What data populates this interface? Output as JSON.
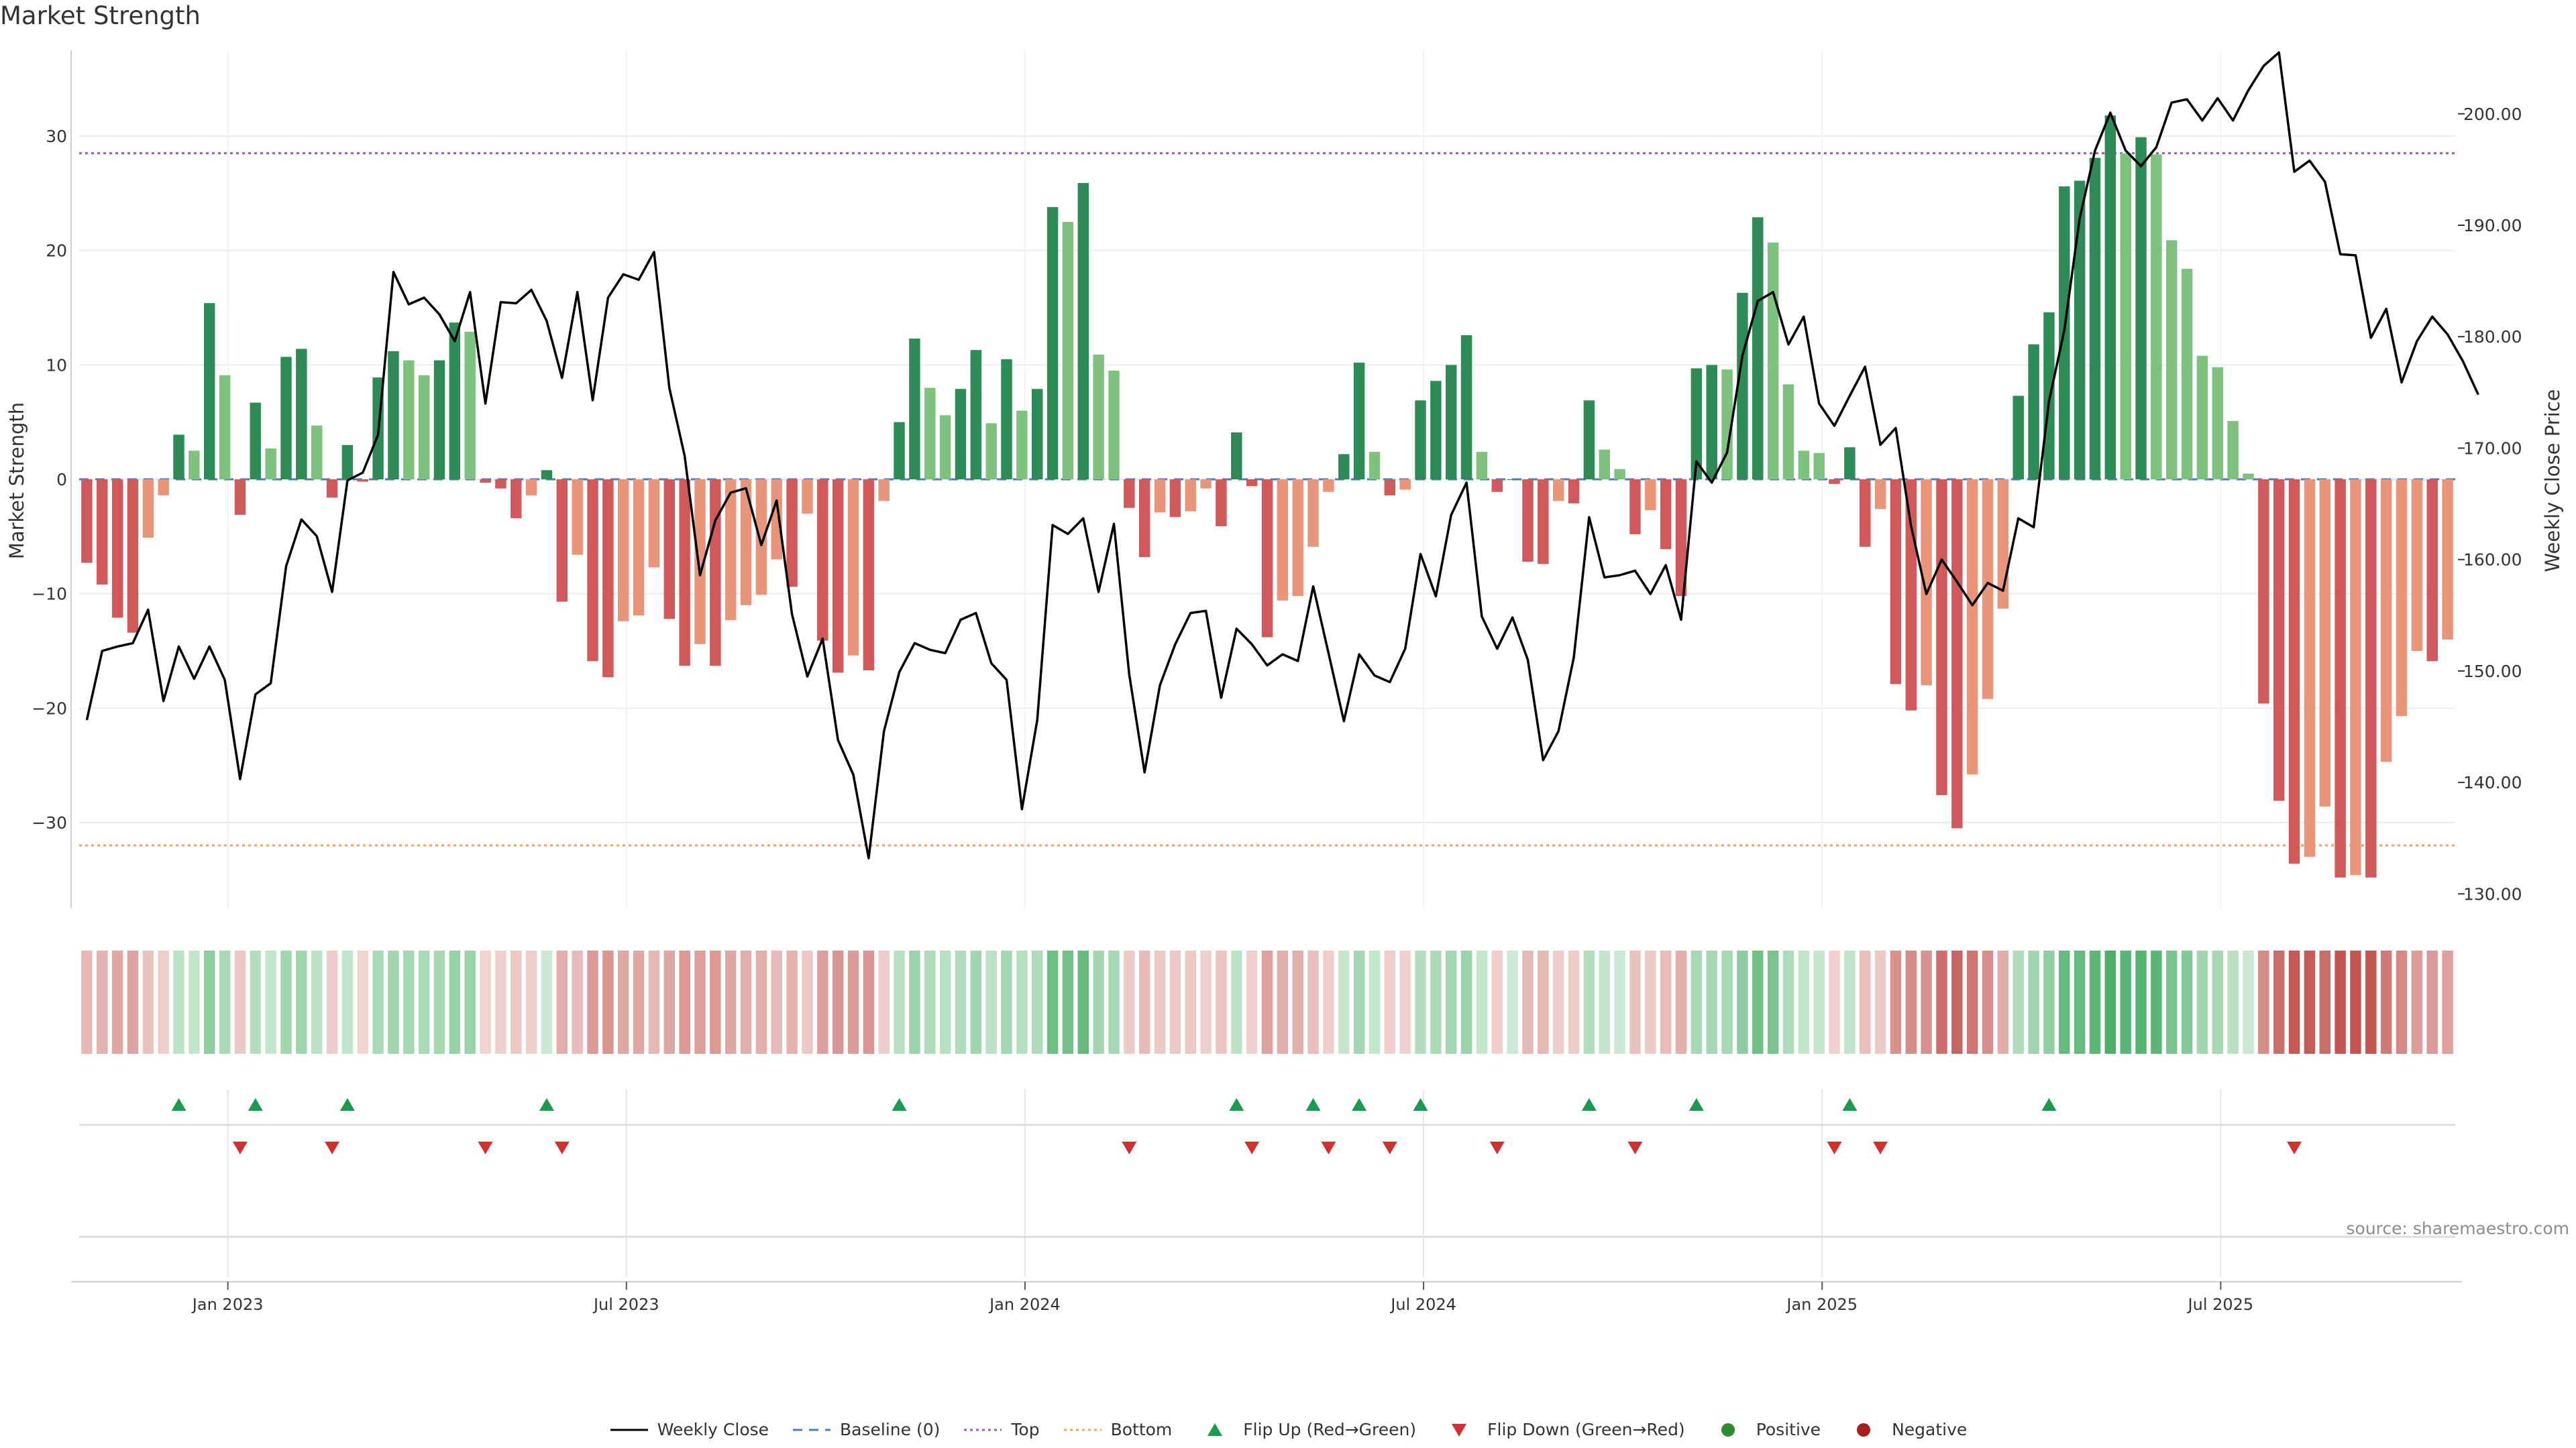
{
  "title": "Market Strength",
  "source": "source: sharemaestro.com",
  "colors": {
    "pos_strong": "#2e8b57",
    "pos_light": "#7fc17f",
    "neg_strong": "#d05a5a",
    "neg_light": "#e8957a",
    "line": "#000000",
    "top_line": "#9b59b6",
    "bottom_line": "#f0a35e",
    "baseline": "#4f7cc0",
    "flip_up": "#1a9a50",
    "flip_down": "#d32f2f",
    "positive_dot": "#2e8b2e",
    "negative_dot": "#a52020"
  },
  "legend": [
    {
      "label": "Weekly Close",
      "kind": "line-solid",
      "color": "#000000"
    },
    {
      "label": "Baseline (0)",
      "kind": "line-dashed",
      "color": "#4f7cc0"
    },
    {
      "label": "Top",
      "kind": "line-dotted",
      "color": "#9b59b6"
    },
    {
      "label": "Bottom",
      "kind": "line-dotted",
      "color": "#f0a35e"
    },
    {
      "label": "Flip Up (Red→Green)",
      "kind": "tri-up",
      "color": "#1a9a50"
    },
    {
      "label": "Flip Down (Green→Red)",
      "kind": "tri-down",
      "color": "#d32f2f"
    },
    {
      "label": "Positive",
      "kind": "dot",
      "color": "#2e8b2e"
    },
    {
      "label": "Negative",
      "kind": "dot",
      "color": "#a52020"
    }
  ],
  "chart_data": {
    "type": "bar",
    "left_axis": {
      "label": "Market Strength",
      "ticks": [
        30,
        20,
        10,
        0,
        -10,
        -20,
        -30
      ],
      "ylim": [
        -37.5,
        37.5
      ]
    },
    "right_axis": {
      "label": "Weekly Close Price",
      "ticks": [
        "200.00",
        "190.00",
        "180.00",
        "170.00",
        "160.00",
        "150.00",
        "140.00",
        "130.00"
      ],
      "ylim": [
        128.7,
        205.7
      ]
    },
    "x_axis": {
      "ticks": [
        "Jan 2023",
        "Jul 2023",
        "Jan 2024",
        "Jul 2024",
        "Jan 2025",
        "Jul 2025"
      ],
      "tick_weeks": [
        9.7,
        35.7,
        61.7,
        87.7,
        113.7,
        139.7
      ]
    },
    "top_level": 28.5,
    "bottom_level": -32.0,
    "series": [
      {
        "name": "Market Strength",
        "kind": "bar",
        "values": [
          -7.3,
          -9.2,
          -12.1,
          -13.4,
          -5.1,
          -1.4,
          3.9,
          2.5,
          15.4,
          9.1,
          -3.1,
          6.7,
          2.7,
          10.7,
          11.4,
          4.7,
          -1.6,
          3.0,
          -0.2,
          8.9,
          11.2,
          10.4,
          9.1,
          10.4,
          13.7,
          12.9,
          -0.3,
          -0.8,
          -3.4,
          -1.4,
          0.8,
          -10.7,
          -6.6,
          -15.9,
          -17.3,
          -12.4,
          -11.9,
          -7.7,
          -12.2,
          -16.3,
          -14.4,
          -16.3,
          -12.3,
          -11.0,
          -10.1,
          -7.0,
          -9.4,
          -3.0,
          -14.1,
          -16.9,
          -15.4,
          -16.7,
          -1.9,
          5.0,
          12.3,
          8.0,
          5.6,
          7.9,
          11.3,
          4.9,
          10.5,
          6.0,
          7.9,
          23.8,
          22.5,
          25.9,
          10.9,
          9.5,
          -2.5,
          -6.8,
          -2.9,
          -3.3,
          -2.8,
          -0.8,
          -4.1,
          4.1,
          -0.6,
          -13.8,
          -10.6,
          -10.2,
          -5.9,
          -1.1,
          2.2,
          10.2,
          2.4,
          -1.4,
          -0.9,
          6.9,
          8.6,
          10.0,
          12.6,
          2.4,
          -1.1,
          0.0,
          -7.2,
          -7.4,
          -1.9,
          -2.1,
          6.9,
          2.6,
          0.9,
          -4.8,
          -2.7,
          -6.1,
          -10.2,
          9.7,
          10.0,
          9.6,
          16.3,
          22.9,
          20.7,
          8.3,
          2.5,
          2.3,
          -0.4,
          2.8,
          -5.9,
          -2.6,
          -17.9,
          -20.2,
          -18.0,
          -27.6,
          -30.5,
          -25.8,
          -19.2,
          -11.3,
          7.3,
          11.8,
          14.6,
          25.6,
          26.1,
          28.1,
          31.8,
          28.5,
          29.9,
          28.4,
          20.9,
          18.4,
          10.8,
          9.8,
          5.1,
          0.5,
          -19.6,
          -28.1,
          -33.6,
          -33.0,
          -28.6,
          -34.8,
          -34.6,
          -34.8,
          -24.7,
          -20.7,
          -15.0,
          -15.9,
          -14.0
        ]
      },
      {
        "name": "Weekly Close",
        "kind": "line",
        "values": [
          145.6,
          151.8,
          152.2,
          152.5,
          155.5,
          147.3,
          152.2,
          149.3,
          152.2,
          149.2,
          140.3,
          147.9,
          148.9,
          159.4,
          163.6,
          162.1,
          157.1,
          167.1,
          167.8,
          171.2,
          185.8,
          182.9,
          183.5,
          182.0,
          179.6,
          184.0,
          174.0,
          183.1,
          183.0,
          184.2,
          181.4,
          176.3,
          184.0,
          174.3,
          183.5,
          185.6,
          185.1,
          187.6,
          175.4,
          169.3,
          158.6,
          163.5,
          166.0,
          166.4,
          161.3,
          165.3,
          155.1,
          149.5,
          152.9,
          143.8,
          140.7,
          133.2,
          144.6,
          149.9,
          152.5,
          151.9,
          151.6,
          154.6,
          155.2,
          150.7,
          149.2,
          137.6,
          145.6,
          163.1,
          162.3,
          163.7,
          157.1,
          163.2,
          149.7,
          140.9,
          148.7,
          152.4,
          155.2,
          155.4,
          147.6,
          153.8,
          152.4,
          150.5,
          151.5,
          150.9,
          157.6,
          151.6,
          145.5,
          151.5,
          149.6,
          149.0,
          152.0,
          160.5,
          156.7,
          164.0,
          166.9,
          154.9,
          152.0,
          154.8,
          151.0,
          142.0,
          144.6,
          151.2,
          163.8,
          158.4,
          158.6,
          159.0,
          156.9,
          159.5,
          154.6,
          168.8,
          166.9,
          169.6,
          178.3,
          183.2,
          184.0,
          179.3,
          181.8,
          174.0,
          172.0,
          174.7,
          177.3,
          170.3,
          171.8,
          163.0,
          156.9,
          160.0,
          158.0,
          155.9,
          157.9,
          157.2,
          163.7,
          162.9,
          174.2,
          180.6,
          190.6,
          196.7,
          200.1,
          196.7,
          195.3,
          197.0,
          201.0,
          201.3,
          199.4,
          201.4,
          199.4,
          202.1,
          204.3,
          205.5,
          194.8,
          195.8,
          193.9,
          187.4,
          187.3,
          179.9,
          182.5,
          175.9,
          179.6,
          181.8,
          180.2,
          177.8,
          174.8
        ]
      }
    ],
    "flip_up_weeks": [
      6,
      11,
      17,
      30,
      53,
      75,
      80,
      83,
      87,
      98,
      105,
      115,
      128
    ],
    "flip_down_weeks": [
      10,
      16,
      26,
      31,
      68,
      76,
      81,
      85,
      92,
      101,
      114,
      117,
      144
    ]
  }
}
